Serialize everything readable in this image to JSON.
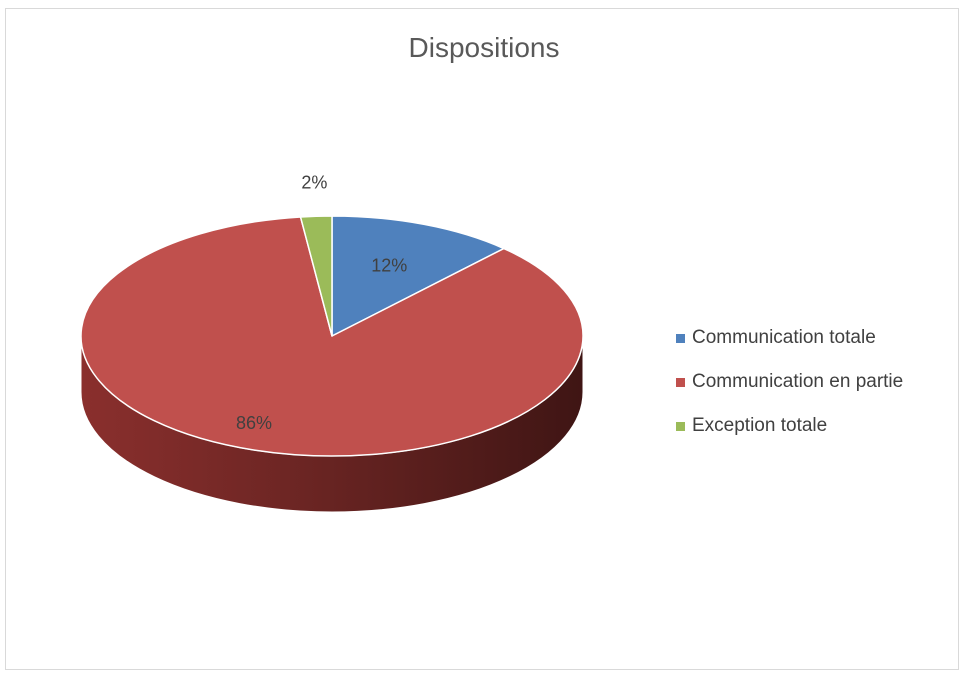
{
  "chart_data": {
    "type": "pie",
    "title": "Dispositions",
    "series": [
      {
        "name": "Communication totale",
        "value": 12,
        "label": "12%",
        "color": "#4f81bd"
      },
      {
        "name": "Communication en partie",
        "value": 86,
        "label": "86%",
        "color": "#c0504d"
      },
      {
        "name": "Exception totale",
        "value": 2,
        "label": "2%",
        "color": "#9bbb59"
      }
    ],
    "legend_position": "right",
    "style": "3d"
  }
}
